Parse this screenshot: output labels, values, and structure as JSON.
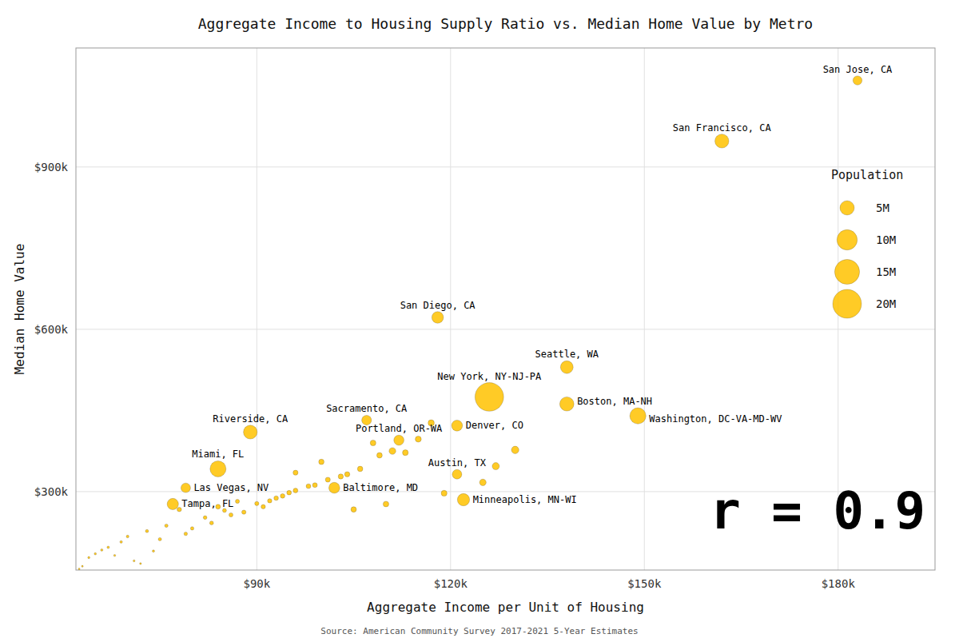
{
  "chart_data": {
    "type": "scatter",
    "title": "Aggregate Income to Housing Supply Ratio vs. Median Home Value by Metro",
    "xlabel": "Aggregate Income per Unit of Housing",
    "ylabel": "Median Home Value",
    "source": "Source: American Community Survey 2017-2021 5-Year Estimates",
    "annotation": "r = 0.9",
    "color": "#FFC200",
    "grid": true,
    "legend": "upper-right",
    "xlim": [
      62000,
      195000
    ],
    "ylim": [
      155000,
      1120000
    ],
    "xticks": [
      {
        "value": 90000,
        "label": "$90k"
      },
      {
        "value": 120000,
        "label": "$120k"
      },
      {
        "value": 150000,
        "label": "$150k"
      },
      {
        "value": 180000,
        "label": "$180k"
      }
    ],
    "yticks": [
      {
        "value": 300000,
        "label": "$300k"
      },
      {
        "value": 600000,
        "label": "$600k"
      },
      {
        "value": 900000,
        "label": "$900k"
      }
    ],
    "x": [
      183000,
      162000,
      118000,
      138000,
      126000,
      138000,
      149000,
      107000,
      121000,
      112000,
      89000,
      84000,
      79000,
      102000,
      121000,
      77000,
      122000,
      111000,
      108000,
      100000,
      96000,
      93000,
      87000,
      84000,
      78000,
      82000,
      76000,
      73000,
      70000,
      69000,
      67000,
      66000,
      65000,
      64000,
      68000,
      71000,
      75000,
      79000,
      83000,
      86000,
      88000,
      91000,
      94000,
      96000,
      99000,
      101000,
      104000,
      106000,
      109000,
      113000,
      115000,
      117000,
      125000,
      110000,
      105000,
      119000,
      127000,
      130000,
      72000,
      63000,
      62500,
      74000,
      80000,
      85000,
      90000,
      92000,
      95000,
      98000,
      103000
    ],
    "values": [
      1060000,
      948000,
      622000,
      530000,
      475000,
      462000,
      440000,
      432000,
      422000,
      395000,
      410000,
      342000,
      307000,
      307000,
      332000,
      277000,
      285000,
      375000,
      390000,
      355000,
      335000,
      288000,
      282000,
      272000,
      267000,
      252000,
      237000,
      227000,
      217000,
      207000,
      197000,
      192000,
      185000,
      178000,
      182000,
      172000,
      212000,
      222000,
      242000,
      257000,
      262000,
      272000,
      292000,
      302000,
      312000,
      322000,
      332000,
      342000,
      367000,
      372000,
      397000,
      427000,
      317000,
      277000,
      267000,
      297000,
      347000,
      377000,
      167000,
      162000,
      157000,
      190000,
      232000,
      265000,
      278000,
      283000,
      298000,
      310000,
      328000
    ],
    "sizes": [
      1990000,
      4700000,
      3300000,
      3900000,
      19800000,
      4850000,
      6300000,
      2300000,
      2900000,
      2500000,
      4600000,
      6200000,
      2200000,
      2900000,
      2200000,
      3100000,
      3640000,
      1100000,
      800000,
      700000,
      600000,
      500000,
      400000,
      550000,
      480000,
      330000,
      280000,
      230000,
      185000,
      165000,
      145000,
      130000,
      120000,
      110000,
      100000,
      95000,
      260000,
      300000,
      360000,
      400000,
      430000,
      460000,
      500000,
      530000,
      560000,
      600000,
      660000,
      700000,
      740000,
      800000,
      880000,
      930000,
      1050000,
      780000,
      730000,
      830000,
      1250000,
      1350000,
      85000,
      80000,
      75000,
      130000,
      290000,
      380000,
      420000,
      455000,
      510000,
      545000,
      640000
    ],
    "point_labels": [
      "San Jose, CA",
      "San Francisco, CA",
      "San Diego, CA",
      "Seattle, WA",
      "New York, NY-NJ-PA",
      "Boston, MA-NH",
      "Washington, DC-VA-MD-WV",
      "Sacramento, CA",
      "Denver, CO",
      "Portland, OR-WA",
      "Riverside, CA",
      "Miami, FL",
      "Las Vegas, NV",
      "Baltimore, MD",
      "Austin, TX",
      "Tampa, FL",
      "Minneapolis, MN-WI",
      null,
      null,
      null,
      null,
      null,
      null,
      null,
      null,
      null,
      null,
      null,
      null,
      null,
      null,
      null,
      null,
      null,
      null,
      null,
      null,
      null,
      null,
      null,
      null,
      null,
      null,
      null,
      null,
      null,
      null,
      null,
      null,
      null,
      null,
      null,
      null,
      null,
      null,
      null,
      null,
      null,
      null,
      null,
      null,
      null,
      null,
      null,
      null,
      null,
      null,
      null,
      null
    ],
    "size_legend": {
      "title": "Population",
      "values": [
        5000000,
        10000000,
        15000000,
        20000000
      ],
      "labels": [
        "5M",
        "10M",
        "15M",
        "20M"
      ]
    }
  }
}
